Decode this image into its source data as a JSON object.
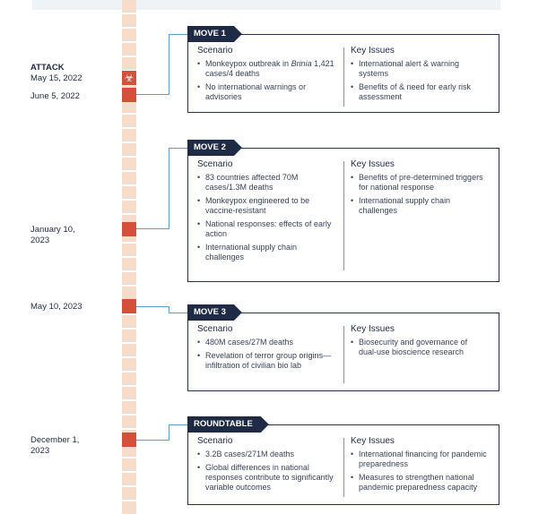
{
  "timeline": {
    "attack_label": "ATTACK",
    "attack_date": "May 15, 2022",
    "attack_icon": "biohazard-icon",
    "events": [
      {
        "date": "June 5, 2022"
      },
      {
        "date": "January 10,",
        "date2": "2023"
      },
      {
        "date": "May 10, 2023"
      },
      {
        "date": "December 1,",
        "date2": "2023"
      }
    ]
  },
  "moves": [
    {
      "tag": "MOVE 1",
      "scenario_h": "Scenario",
      "issues_h": "Key Issues",
      "scenario": [
        {
          "pre": "Monkeypox outbreak in ",
          "em": "Brinia",
          "post": " 1,421 cases/4 deaths"
        },
        {
          "pre": "No international warnings or advisories"
        }
      ],
      "issues": [
        "International alert & warning systems",
        "Benefits of & need for early risk assessment"
      ]
    },
    {
      "tag": "MOVE 2",
      "scenario_h": "Scenario",
      "issues_h": "Key Issues",
      "scenario": [
        {
          "pre": "83 countries affected 70M cases/1.3M deaths"
        },
        {
          "pre": "Monkeypox engineered to be vaccine-resistant"
        },
        {
          "pre": "National responses: effects of early action"
        },
        {
          "pre": "International supply chain challenges"
        }
      ],
      "issues": [
        "Benefits of pre-determined triggers for national response",
        "International supply chain challenges"
      ]
    },
    {
      "tag": "MOVE 3",
      "scenario_h": "Scenario",
      "issues_h": "Key Issues",
      "scenario": [
        {
          "pre": "480M cases/27M deaths"
        },
        {
          "pre": "Revelation of terror group origins—infiltration of civilian bio lab"
        }
      ],
      "issues": [
        "Biosecurity and governance of dual-use bioscience research"
      ]
    },
    {
      "tag": "ROUNDTABLE",
      "scenario_h": "Scenario",
      "issues_h": "Key Issues",
      "scenario": [
        {
          "pre": "3.2B cases/271M deaths"
        },
        {
          "pre": "Global differences in national responses contribute to significantly variable outcomes"
        }
      ],
      "issues": [
        "International financing for pandemic preparedness",
        "Measures to strengthen national pandemic preparedness capacity"
      ]
    }
  ]
}
